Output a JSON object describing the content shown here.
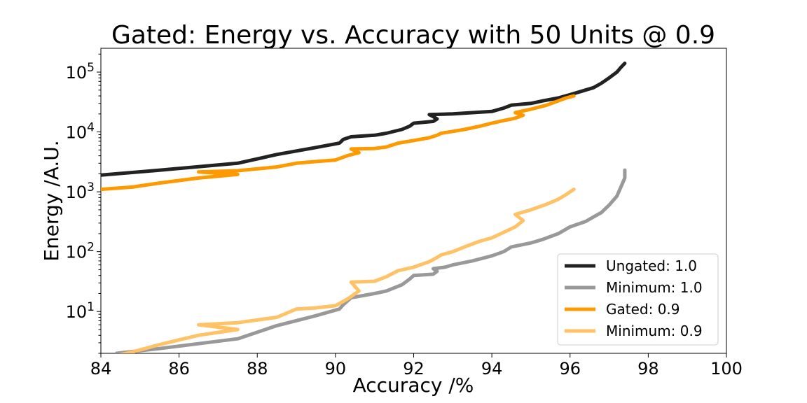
{
  "chart_data": {
    "type": "line",
    "title": "Gated: Energy vs. Accuracy with 50 Units @ 0.9",
    "xlabel": "Accuracy /%",
    "ylabel": "Energy /A.U.",
    "xlim": [
      84,
      100
    ],
    "ylim": [
      2,
      250000
    ],
    "yscale": "log",
    "grid": false,
    "legend_position": "lower-right",
    "x_ticks": [
      84,
      86,
      88,
      90,
      92,
      94,
      96,
      98,
      100
    ],
    "y_ticks": [
      {
        "value": 10,
        "base": "10",
        "exp": "1"
      },
      {
        "value": 100,
        "base": "10",
        "exp": "2"
      },
      {
        "value": 1000,
        "base": "10",
        "exp": "3"
      },
      {
        "value": 10000,
        "base": "10",
        "exp": "4"
      },
      {
        "value": 100000,
        "base": "10",
        "exp": "5"
      }
    ],
    "series": [
      {
        "name": "Ungated: 1.0",
        "color": "#222222",
        "points": [
          [
            84.0,
            1900
          ],
          [
            85.5,
            2300
          ],
          [
            87.5,
            3000
          ],
          [
            88.5,
            4200
          ],
          [
            89.5,
            5500
          ],
          [
            90.1,
            6500
          ],
          [
            90.2,
            7500
          ],
          [
            90.4,
            8300
          ],
          [
            91.0,
            8800
          ],
          [
            91.3,
            9500
          ],
          [
            91.7,
            11000
          ],
          [
            91.9,
            12500
          ],
          [
            92.0,
            14000
          ],
          [
            92.5,
            15000
          ],
          [
            92.6,
            16500
          ],
          [
            92.5,
            18000
          ],
          [
            92.4,
            19500
          ],
          [
            93.0,
            20000
          ],
          [
            93.5,
            21000
          ],
          [
            94.0,
            22000
          ],
          [
            94.3,
            25000
          ],
          [
            94.5,
            28000
          ],
          [
            95.0,
            30000
          ],
          [
            95.3,
            33000
          ],
          [
            95.7,
            37000
          ],
          [
            96.0,
            42000
          ],
          [
            96.3,
            48000
          ],
          [
            96.6,
            55000
          ],
          [
            96.8,
            65000
          ],
          [
            97.0,
            80000
          ],
          [
            97.2,
            100000
          ],
          [
            97.3,
            120000
          ],
          [
            97.4,
            140000
          ]
        ]
      },
      {
        "name": "Minimum: 1.0",
        "color": "#999999",
        "points": [
          [
            84.4,
            2
          ],
          [
            85.5,
            2.4
          ],
          [
            87.5,
            3.5
          ],
          [
            88.5,
            5.8
          ],
          [
            89.5,
            8.5
          ],
          [
            90.1,
            11
          ],
          [
            90.2,
            13
          ],
          [
            90.4,
            17
          ],
          [
            91.0,
            20
          ],
          [
            91.3,
            22
          ],
          [
            91.7,
            28
          ],
          [
            91.9,
            35
          ],
          [
            92.0,
            40
          ],
          [
            92.5,
            42
          ],
          [
            92.6,
            47
          ],
          [
            92.5,
            52
          ],
          [
            92.8,
            55
          ],
          [
            93.0,
            60
          ],
          [
            93.5,
            70
          ],
          [
            94.0,
            85
          ],
          [
            94.3,
            100
          ],
          [
            94.5,
            120
          ],
          [
            95.0,
            140
          ],
          [
            95.3,
            160
          ],
          [
            95.7,
            200
          ],
          [
            96.0,
            260
          ],
          [
            96.4,
            320
          ],
          [
            96.6,
            380
          ],
          [
            96.8,
            450
          ],
          [
            97.0,
            600
          ],
          [
            97.2,
            850
          ],
          [
            97.3,
            1200
          ],
          [
            97.4,
            1700
          ],
          [
            97.4,
            2300
          ]
        ]
      },
      {
        "name": "Gated: 0.9",
        "color": "#ff9900",
        "points": [
          [
            84.0,
            1100
          ],
          [
            84.8,
            1200
          ],
          [
            85.5,
            1400
          ],
          [
            86.5,
            1700
          ],
          [
            87.5,
            1950
          ],
          [
            86.5,
            2150
          ],
          [
            87.5,
            2250
          ],
          [
            88.5,
            2600
          ],
          [
            89.0,
            3000
          ],
          [
            89.5,
            3200
          ],
          [
            90.0,
            3400
          ],
          [
            90.3,
            4000
          ],
          [
            90.6,
            4500
          ],
          [
            90.4,
            5200
          ],
          [
            91.0,
            5300
          ],
          [
            91.3,
            5600
          ],
          [
            91.6,
            6500
          ],
          [
            92.0,
            7200
          ],
          [
            92.4,
            8000
          ],
          [
            92.6,
            8800
          ],
          [
            92.7,
            9500
          ],
          [
            93.0,
            10200
          ],
          [
            93.3,
            11000
          ],
          [
            93.7,
            12500
          ],
          [
            94.0,
            14000
          ],
          [
            94.3,
            15500
          ],
          [
            94.6,
            17000
          ],
          [
            94.8,
            19000
          ],
          [
            94.6,
            21000
          ],
          [
            95.0,
            24000
          ],
          [
            95.4,
            28000
          ],
          [
            95.7,
            33000
          ],
          [
            95.9,
            37000
          ],
          [
            96.1,
            40000
          ]
        ]
      },
      {
        "name": "Minimum: 0.9",
        "color": "#ffc266",
        "points": [
          [
            84.0,
            1.6
          ],
          [
            84.8,
            2.1
          ],
          [
            85.5,
            2.8
          ],
          [
            86.5,
            4
          ],
          [
            87.5,
            5
          ],
          [
            86.5,
            6
          ],
          [
            87.5,
            6.5
          ],
          [
            88.5,
            8
          ],
          [
            89.0,
            11
          ],
          [
            89.5,
            11.5
          ],
          [
            90.0,
            12.5
          ],
          [
            90.3,
            16
          ],
          [
            90.6,
            22
          ],
          [
            90.4,
            31
          ],
          [
            91.0,
            32
          ],
          [
            91.3,
            38
          ],
          [
            91.6,
            48
          ],
          [
            92.0,
            55
          ],
          [
            92.4,
            68
          ],
          [
            92.6,
            80
          ],
          [
            92.7,
            88
          ],
          [
            93.0,
            100
          ],
          [
            93.3,
            120
          ],
          [
            93.7,
            150
          ],
          [
            94.0,
            170
          ],
          [
            94.3,
            210
          ],
          [
            94.6,
            260
          ],
          [
            94.8,
            330
          ],
          [
            94.6,
            420
          ],
          [
            95.0,
            500
          ],
          [
            95.4,
            620
          ],
          [
            95.7,
            750
          ],
          [
            95.9,
            900
          ],
          [
            96.1,
            1100
          ]
        ]
      }
    ]
  }
}
